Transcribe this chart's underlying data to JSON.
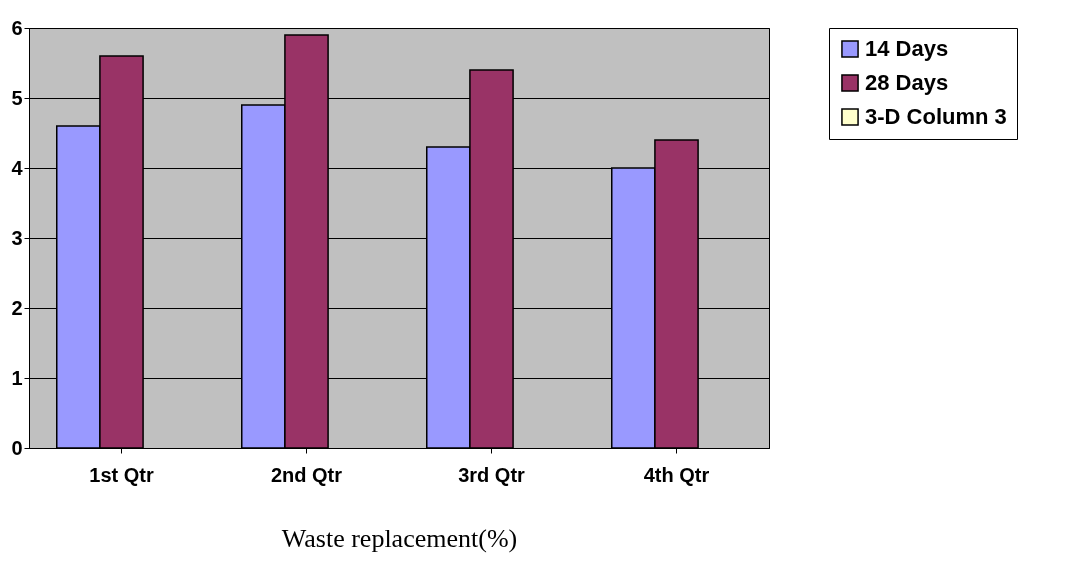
{
  "chart_data": {
    "type": "bar",
    "xlabel": "Waste replacement(%)",
    "categories": [
      "1st Qtr",
      "2nd Qtr",
      "3rd Qtr",
      "4th Qtr"
    ],
    "series": [
      {
        "name": "14 Days",
        "color": "#9999ff",
        "values": [
          4.6,
          4.9,
          4.3,
          4.0
        ]
      },
      {
        "name": "28 Days",
        "color": "#993366",
        "values": [
          5.6,
          5.9,
          5.4,
          4.4
        ]
      },
      {
        "name": "3-D Column 3",
        "color": "#ffffcc",
        "values": [
          null,
          null,
          null,
          null
        ]
      }
    ],
    "ylim": [
      0,
      6
    ],
    "yticks": [
      0,
      1,
      2,
      3,
      4,
      5,
      6
    ],
    "grid": "y",
    "legend": "right"
  }
}
